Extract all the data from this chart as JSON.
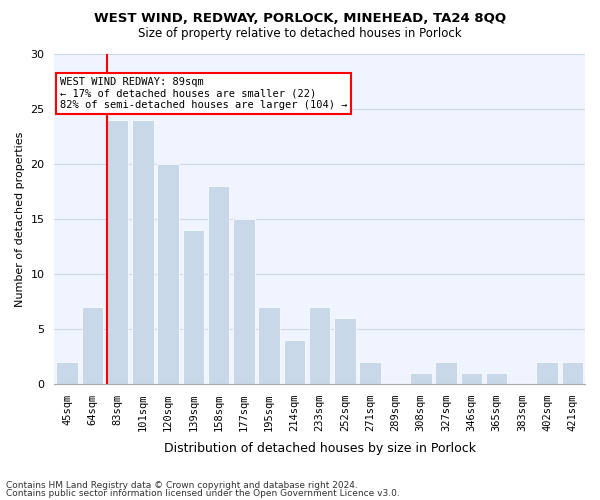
{
  "title1": "WEST WIND, REDWAY, PORLOCK, MINEHEAD, TA24 8QQ",
  "title2": "Size of property relative to detached houses in Porlock",
  "xlabel": "Distribution of detached houses by size in Porlock",
  "ylabel": "Number of detached properties",
  "categories": [
    "45sqm",
    "64sqm",
    "83sqm",
    "101sqm",
    "120sqm",
    "139sqm",
    "158sqm",
    "177sqm",
    "195sqm",
    "214sqm",
    "233sqm",
    "252sqm",
    "271sqm",
    "289sqm",
    "308sqm",
    "327sqm",
    "346sqm",
    "365sqm",
    "383sqm",
    "402sqm",
    "421sqm"
  ],
  "values": [
    2,
    7,
    24,
    24,
    20,
    14,
    18,
    15,
    7,
    4,
    7,
    6,
    2,
    0,
    1,
    2,
    1,
    1,
    0,
    2,
    2
  ],
  "bar_color": "#c8d8e8",
  "bar_edge_color": "#ffffff",
  "vline_x": 2,
  "vline_color": "red",
  "annotation_text": "WEST WIND REDWAY: 89sqm\n← 17% of detached houses are smaller (22)\n82% of semi-detached houses are larger (104) →",
  "annotation_box_color": "white",
  "annotation_box_edge": "red",
  "ylim": [
    0,
    30
  ],
  "yticks": [
    0,
    5,
    10,
    15,
    20,
    25,
    30
  ],
  "grid_color": "#d0d8e8",
  "background_color": "#f0f4ff",
  "footnote1": "Contains HM Land Registry data © Crown copyright and database right 2024.",
  "footnote2": "Contains public sector information licensed under the Open Government Licence v3.0."
}
